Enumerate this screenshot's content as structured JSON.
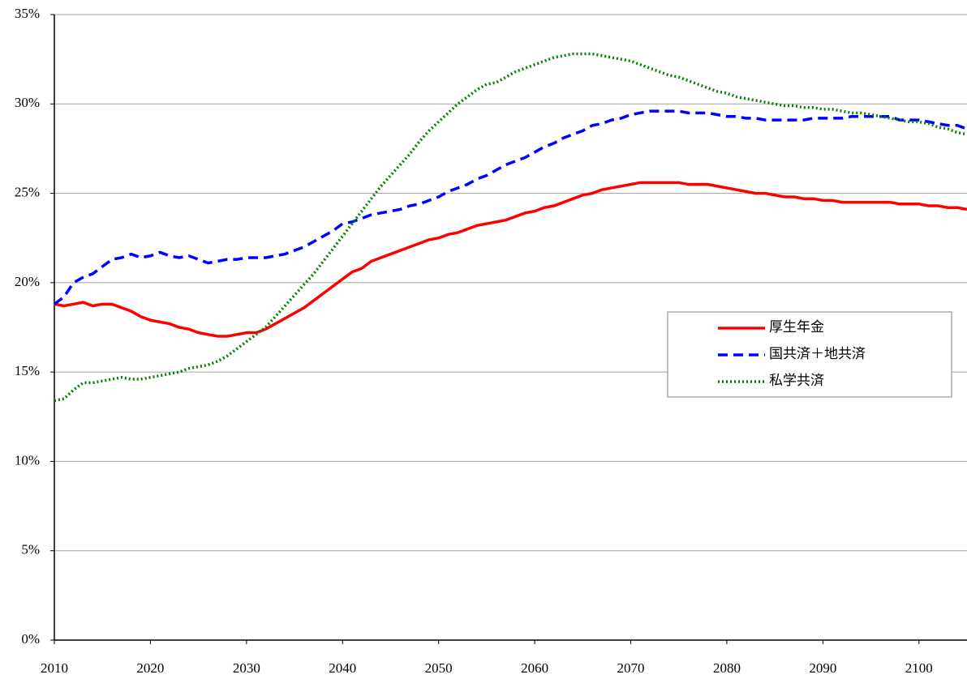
{
  "chart_data": {
    "type": "line",
    "x": [
      2010,
      2011,
      2012,
      2013,
      2014,
      2015,
      2016,
      2017,
      2018,
      2019,
      2020,
      2021,
      2022,
      2023,
      2024,
      2025,
      2026,
      2027,
      2028,
      2029,
      2030,
      2031,
      2032,
      2033,
      2034,
      2035,
      2036,
      2037,
      2038,
      2039,
      2040,
      2041,
      2042,
      2043,
      2044,
      2045,
      2046,
      2047,
      2048,
      2049,
      2050,
      2051,
      2052,
      2053,
      2054,
      2055,
      2056,
      2057,
      2058,
      2059,
      2060,
      2061,
      2062,
      2063,
      2064,
      2065,
      2066,
      2067,
      2068,
      2069,
      2070,
      2071,
      2072,
      2073,
      2074,
      2075,
      2076,
      2077,
      2078,
      2079,
      2080,
      2081,
      2082,
      2083,
      2084,
      2085,
      2086,
      2087,
      2088,
      2089,
      2090,
      2091,
      2092,
      2093,
      2094,
      2095,
      2096,
      2097,
      2098,
      2099,
      2100,
      2101,
      2102,
      2103,
      2104,
      2105
    ],
    "series": [
      {
        "name": "厚生年金",
        "color": "#ff0000",
        "line_style": "solid",
        "values": [
          18.8,
          18.7,
          18.8,
          18.9,
          18.7,
          18.8,
          18.8,
          18.6,
          18.4,
          18.1,
          17.9,
          17.8,
          17.7,
          17.5,
          17.4,
          17.2,
          17.1,
          17.0,
          17.0,
          17.1,
          17.2,
          17.2,
          17.4,
          17.7,
          18.0,
          18.3,
          18.6,
          19.0,
          19.4,
          19.8,
          20.2,
          20.6,
          20.8,
          21.2,
          21.4,
          21.6,
          21.8,
          22.0,
          22.2,
          22.4,
          22.5,
          22.7,
          22.8,
          23.0,
          23.2,
          23.3,
          23.4,
          23.5,
          23.7,
          23.9,
          24.0,
          24.2,
          24.3,
          24.5,
          24.7,
          24.9,
          25.0,
          25.2,
          25.3,
          25.4,
          25.5,
          25.6,
          25.6,
          25.6,
          25.6,
          25.6,
          25.5,
          25.5,
          25.5,
          25.4,
          25.3,
          25.2,
          25.1,
          25.0,
          25.0,
          24.9,
          24.8,
          24.8,
          24.7,
          24.7,
          24.6,
          24.6,
          24.5,
          24.5,
          24.5,
          24.5,
          24.5,
          24.5,
          24.4,
          24.4,
          24.4,
          24.3,
          24.3,
          24.2,
          24.2,
          24.1
        ]
      },
      {
        "name": "国共済＋地共済",
        "color": "#0000ff",
        "line_style": "dashed",
        "values": [
          18.8,
          19.2,
          20.0,
          20.3,
          20.5,
          20.9,
          21.3,
          21.4,
          21.6,
          21.4,
          21.5,
          21.7,
          21.5,
          21.4,
          21.5,
          21.3,
          21.1,
          21.2,
          21.3,
          21.3,
          21.4,
          21.4,
          21.4,
          21.5,
          21.6,
          21.8,
          22.0,
          22.3,
          22.6,
          22.9,
          23.3,
          23.4,
          23.6,
          23.8,
          23.9,
          24.0,
          24.1,
          24.3,
          24.4,
          24.6,
          24.8,
          25.1,
          25.3,
          25.5,
          25.8,
          26.0,
          26.3,
          26.6,
          26.8,
          27.0,
          27.3,
          27.6,
          27.8,
          28.1,
          28.3,
          28.5,
          28.8,
          28.9,
          29.1,
          29.2,
          29.4,
          29.5,
          29.6,
          29.6,
          29.6,
          29.6,
          29.5,
          29.5,
          29.5,
          29.4,
          29.3,
          29.3,
          29.2,
          29.2,
          29.1,
          29.1,
          29.1,
          29.1,
          29.1,
          29.2,
          29.2,
          29.2,
          29.2,
          29.3,
          29.3,
          29.3,
          29.3,
          29.3,
          29.1,
          29.1,
          29.1,
          29.0,
          28.9,
          28.8,
          28.8,
          28.6
        ]
      },
      {
        "name": "私学共済",
        "color": "#008000",
        "line_style": "dotted",
        "values": [
          13.4,
          13.5,
          14.0,
          14.4,
          14.4,
          14.5,
          14.6,
          14.7,
          14.6,
          14.6,
          14.7,
          14.8,
          14.9,
          15.0,
          15.2,
          15.3,
          15.4,
          15.6,
          15.9,
          16.3,
          16.7,
          17.1,
          17.5,
          18.1,
          18.7,
          19.3,
          19.9,
          20.5,
          21.2,
          21.9,
          22.6,
          23.3,
          24.0,
          24.7,
          25.4,
          26.0,
          26.6,
          27.2,
          27.9,
          28.5,
          29.0,
          29.5,
          30.0,
          30.4,
          30.8,
          31.1,
          31.2,
          31.5,
          31.8,
          32.0,
          32.2,
          32.4,
          32.6,
          32.7,
          32.8,
          32.8,
          32.8,
          32.7,
          32.6,
          32.5,
          32.4,
          32.2,
          32.0,
          31.8,
          31.6,
          31.5,
          31.3,
          31.1,
          30.9,
          30.7,
          30.6,
          30.4,
          30.3,
          30.2,
          30.1,
          30.0,
          29.9,
          29.9,
          29.8,
          29.8,
          29.7,
          29.7,
          29.6,
          29.5,
          29.5,
          29.4,
          29.3,
          29.2,
          29.1,
          29.0,
          29.0,
          28.9,
          28.7,
          28.6,
          28.4,
          28.3
        ]
      }
    ],
    "xlim": [
      2010,
      2105
    ],
    "xticks": [
      2010,
      2020,
      2030,
      2040,
      2050,
      2060,
      2070,
      2080,
      2090,
      2100
    ],
    "ylim": [
      0,
      35
    ],
    "yticks": [
      {
        "value": 0,
        "label": "0%"
      },
      {
        "value": 5,
        "label": "5%"
      },
      {
        "value": 10,
        "label": "10%"
      },
      {
        "value": 15,
        "label": "15%"
      },
      {
        "value": 20,
        "label": "20%"
      },
      {
        "value": 25,
        "label": "25%"
      },
      {
        "value": 30,
        "label": "30%"
      },
      {
        "value": 35,
        "label": "35%"
      }
    ],
    "grid": true,
    "legend_position": "center-right"
  }
}
